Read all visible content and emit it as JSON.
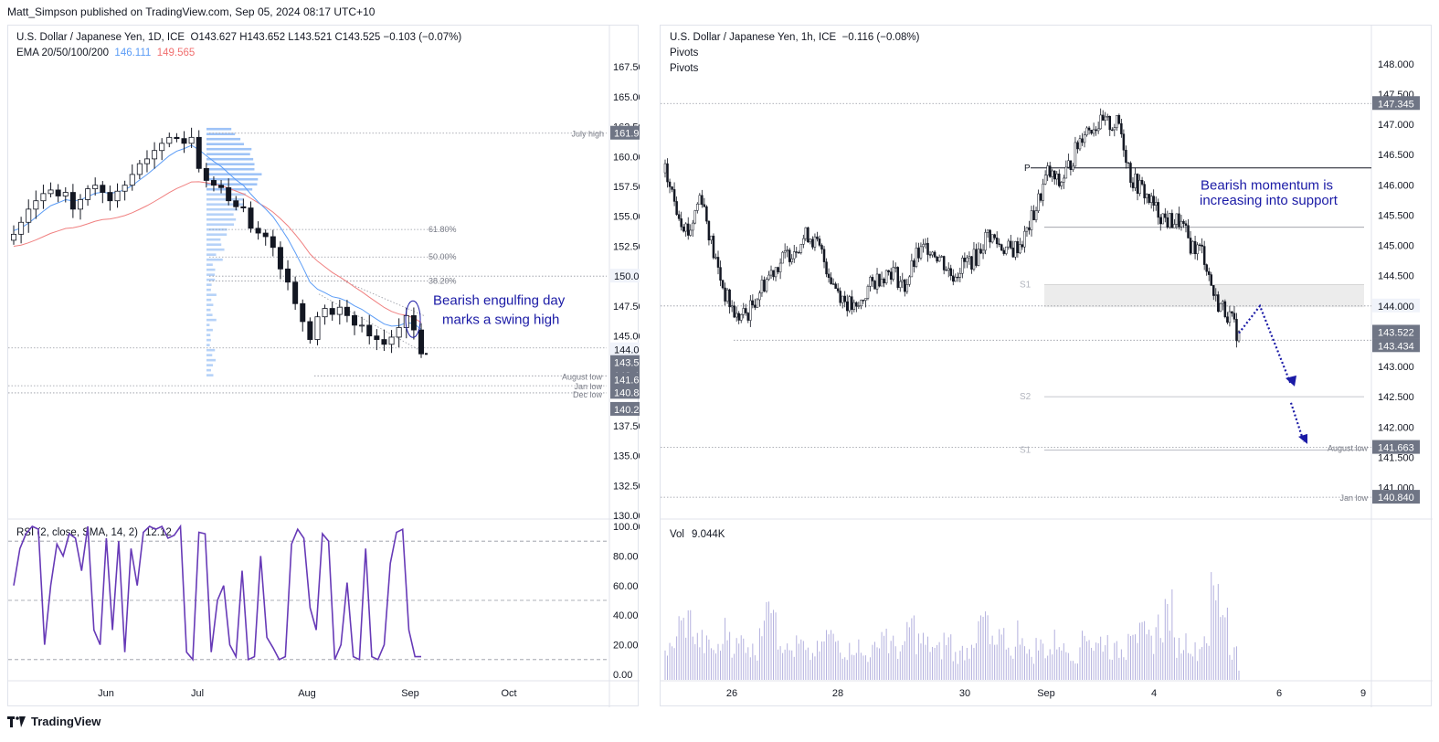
{
  "publisher_line": "Matt_Simpson published on TradingView.com, Sep 05, 2024 08:17 UTC+10",
  "footer_brand": "TradingView",
  "colors": {
    "ema_blue": "#5b9cf6",
    "ema_red": "#f08080",
    "rsi_line": "#673ab7",
    "annotation": "#1a1aa6",
    "volume": "#b3b0de",
    "price_tag_bg": "#6f7585"
  },
  "left_chart": {
    "header": {
      "symbol": "U.S. Dollar / Japanese Yen, 1D, ICE",
      "ohlc": "O143.627  H143.652  L143.521  C143.525  −0.103 (−0.07%)",
      "ema_label": "EMA 20/50/100/200",
      "ema_val1": "146.111",
      "ema_val2": "149.565"
    },
    "annotation": {
      "line1": "Bearish engulfing day",
      "line2": "marks a swing high"
    },
    "y_ticks": [
      "167.500",
      "165.000",
      "162.500",
      "160.000",
      "157.500",
      "155.000",
      "152.500",
      "150.000",
      "147.500",
      "145.000",
      "142.500",
      "137.500",
      "135.000",
      "132.500",
      "130.000"
    ],
    "price_tags": [
      "161.952",
      "150.000",
      "144.000",
      "143.525",
      "143.434",
      "141.663",
      "140.840",
      "140.242"
    ],
    "fib_labels": [
      "61.80%",
      "50.00%",
      "38.20%"
    ],
    "level_labels": [
      "July high",
      "August low",
      "Jan low",
      "Dec low"
    ],
    "x_ticks": [
      "Jun",
      "Jul",
      "Aug",
      "Sep",
      "Oct"
    ],
    "rsi": {
      "label": "RSI (2, close, SMA, 14, 2)",
      "value": "12.12",
      "y_ticks": [
        "100.00",
        "80.00",
        "60.00",
        "40.00",
        "20.00",
        "0.00"
      ]
    }
  },
  "right_chart": {
    "header": {
      "symbol": "U.S. Dollar / Japanese Yen, 1h, ICE",
      "change": "−0.116 (−0.08%)",
      "pivots1": "Pivots",
      "pivots2": "Pivots"
    },
    "annotation": {
      "line1": "Bearish momentum is",
      "line2": "increasing into support"
    },
    "y_ticks": [
      "148.000",
      "147.500",
      "147.000",
      "146.500",
      "146.000",
      "145.500",
      "145.000",
      "144.500",
      "143.000",
      "142.500",
      "142.000",
      "141.500",
      "141.000"
    ],
    "price_tags": [
      "147.345",
      "144.000",
      "143.522",
      "143.434",
      "141.663",
      "140.840"
    ],
    "pivot_labels": [
      "P",
      "S1",
      "S2",
      "S1"
    ],
    "level_labels": [
      "August low",
      "Jan low"
    ],
    "x_ticks": [
      "26",
      "28",
      "30",
      "Sep",
      "4",
      "6",
      "9"
    ],
    "volume": {
      "label": "Vol",
      "value": "9.044K"
    }
  },
  "chart_data": [
    {
      "type": "candlestick",
      "title": "U.S. Dollar / Japanese Yen, 1D, ICE",
      "ylim": [
        130,
        168.5
      ],
      "x": [
        "Jun",
        "Jul",
        "Aug",
        "Sep",
        "Oct"
      ],
      "last_close": 143.525,
      "levels": {
        "July high": 161.952,
        "August low": 141.663,
        "Jan low": 140.84,
        "Dec low": 140.242
      },
      "fib": {
        "61.80%": 153.9,
        "50.00%": 151.6,
        "38.20%": 149.6
      },
      "ema": {
        "ema20": 146.111,
        "ema50": 149.565
      },
      "close_path": [
        153.5,
        154.5,
        155.6,
        156.3,
        156.9,
        157.2,
        156.7,
        157.0,
        155.6,
        156.4,
        157.3,
        157.6,
        157.0,
        156.3,
        157.1,
        157.6,
        158.5,
        159.4,
        159.8,
        160.5,
        161.1,
        161.6,
        161.5,
        161.1,
        161.6,
        159.0,
        158.0,
        157.6,
        157.4,
        156.3,
        155.8,
        155.7,
        154.0,
        153.6,
        153.3,
        152.4,
        150.6,
        149.5,
        147.7,
        146.2,
        144.7,
        146.6,
        147.3,
        146.8,
        147.4,
        146.7,
        145.9,
        145.9,
        145.0,
        144.7,
        144.3,
        144.9,
        145.7,
        146.7,
        145.5,
        143.5
      ],
      "grid": true,
      "legend": "top-left"
    },
    {
      "type": "line",
      "title": "RSI (2, close, SMA, 14, 2)",
      "ylim": [
        0,
        100
      ],
      "last_value": 12.12,
      "values": [
        60,
        85,
        95,
        100,
        98,
        20,
        60,
        88,
        80,
        95,
        92,
        70,
        100,
        30,
        20,
        92,
        30,
        90,
        15,
        85,
        60,
        96,
        100,
        98,
        100,
        92,
        94,
        100,
        15,
        10,
        96,
        95,
        15,
        50,
        60,
        20,
        12,
        70,
        10,
        12,
        80,
        25,
        18,
        10,
        12,
        88,
        98,
        92,
        45,
        30,
        95,
        90,
        10,
        20,
        62,
        12,
        10,
        85,
        12,
        10,
        20,
        75,
        96,
        98,
        30,
        12,
        12
      ]
    },
    {
      "type": "candlestick",
      "title": "U.S. Dollar / Japanese Yen, 1h, ICE",
      "ylim": [
        140.6,
        148.3
      ],
      "x": [
        "26",
        "28",
        "30",
        "Sep",
        "4",
        "6",
        "9"
      ],
      "last_close": 143.522,
      "levels": {
        "147.345": 147.345,
        "Pivot P": 146.28,
        "Pivot S1": 144.35,
        "Pivot S2": 142.5,
        "Pivot S1 (prev)": 141.6,
        "August low": 141.663,
        "Jan low": 140.84
      },
      "close_path": [
        146.2,
        145.6,
        145.2,
        145.9,
        144.9,
        144.2,
        143.8,
        143.9,
        144.3,
        144.6,
        144.8,
        145.0,
        145.2,
        144.9,
        144.4,
        144.1,
        143.9,
        144.3,
        144.5,
        144.6,
        144.3,
        144.8,
        145.0,
        144.8,
        144.5,
        144.7,
        144.8,
        145.2,
        145.0,
        144.9,
        145.1,
        145.6,
        146.2,
        146.0,
        146.4,
        146.9,
        147.0,
        147.0,
        147.0,
        146.1,
        145.9,
        145.6,
        145.4,
        145.4,
        145.0,
        144.9,
        144.1,
        143.9,
        143.5
      ],
      "support_zone": [
        143.9,
        144.35
      ],
      "grid": true,
      "legend": "top-left"
    },
    {
      "type": "bar",
      "title": "Vol",
      "last_value": "9.044K",
      "values": [
        30,
        55,
        60,
        40,
        35,
        30,
        50,
        35,
        40,
        30,
        60,
        95,
        40,
        30,
        35,
        25,
        30,
        45,
        40,
        30,
        35,
        25,
        30,
        50,
        35,
        30,
        55,
        40,
        35,
        30,
        40,
        25,
        30,
        45,
        60,
        35,
        40,
        30,
        50,
        25,
        35,
        30,
        40,
        30,
        25,
        50,
        35,
        40,
        30,
        30,
        60,
        45,
        40,
        55,
        70,
        35,
        40,
        30,
        45,
        85,
        75,
        30,
        10
      ]
    }
  ]
}
